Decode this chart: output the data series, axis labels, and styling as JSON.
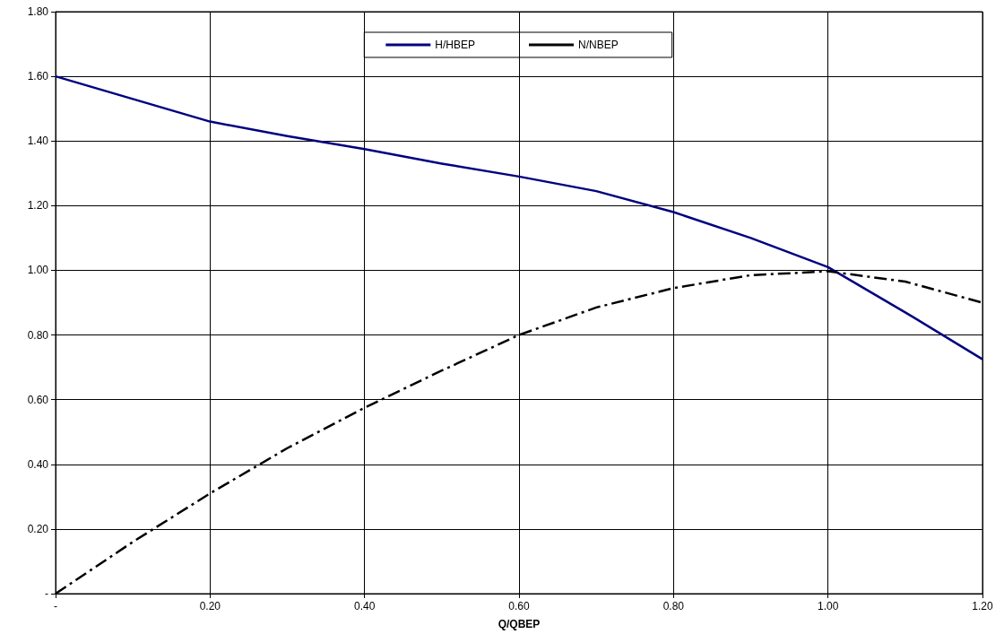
{
  "chart_data": {
    "type": "line",
    "xlabel": "Q/QBEP",
    "x": [
      0,
      0.1,
      0.2,
      0.3,
      0.4,
      0.5,
      0.6,
      0.7,
      0.8,
      0.9,
      1.0,
      1.1,
      1.2
    ],
    "series": [
      {
        "name": "H/HBEP",
        "color": "#000080",
        "line_style": "solid",
        "values": [
          1.6,
          1.53,
          1.46,
          1.415,
          1.375,
          1.33,
          1.29,
          1.245,
          1.18,
          1.1,
          1.01,
          0.87,
          0.725
        ]
      },
      {
        "name": "N/NBEP",
        "color": "#000000",
        "line_style": "dashed",
        "values": [
          0,
          0.16,
          0.31,
          0.45,
          0.575,
          0.69,
          0.8,
          0.885,
          0.945,
          0.985,
          0.997,
          0.965,
          0.9
        ]
      }
    ],
    "xlim": [
      0,
      1.2
    ],
    "xticks": [
      {
        "value": 0,
        "label": "-"
      },
      {
        "value": 0.2,
        "label": "0.20"
      },
      {
        "value": 0.4,
        "label": "0.40"
      },
      {
        "value": 0.6,
        "label": "0.60"
      },
      {
        "value": 0.8,
        "label": "0.80"
      },
      {
        "value": 1.0,
        "label": "1.00"
      },
      {
        "value": 1.2,
        "label": "1.20"
      }
    ],
    "ylim": [
      0,
      1.8
    ],
    "yticks": [
      {
        "value": 0,
        "label": "-"
      },
      {
        "value": 0.2,
        "label": "0.20"
      },
      {
        "value": 0.4,
        "label": "0.40"
      },
      {
        "value": 0.6,
        "label": "0.60"
      },
      {
        "value": 0.8,
        "label": "0.80"
      },
      {
        "value": 1.0,
        "label": "1.00"
      },
      {
        "value": 1.2,
        "label": "1.20"
      },
      {
        "value": 1.4,
        "label": "1.40"
      },
      {
        "value": 1.6,
        "label": "1.60"
      },
      {
        "value": 1.8,
        "label": "1.80"
      }
    ],
    "grid": true,
    "legend": "top",
    "marker": "none"
  }
}
